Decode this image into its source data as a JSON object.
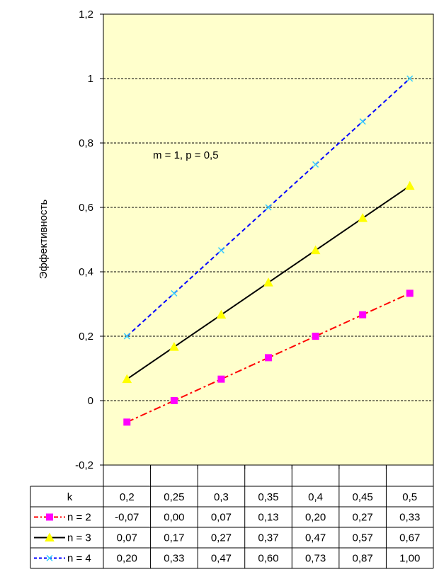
{
  "chart_data": {
    "type": "line",
    "ylabel": "Эффективность",
    "annotation": "m = 1, p = 0,5",
    "ylim": [
      -0.2,
      1.2
    ],
    "y_ticks": [
      "-0,2",
      "0",
      "0,2",
      "0,4",
      "0,6",
      "0,8",
      "1",
      "1,2"
    ],
    "x_header": "k",
    "categories": [
      "0,2",
      "0,25",
      "0,3",
      "0,35",
      "0,4",
      "0,45",
      "0,5"
    ],
    "grid": true,
    "plot_background": "#ffffcc",
    "series": [
      {
        "name": "n = 2",
        "values": [
          -0.0667,
          0.0,
          0.0667,
          0.1333,
          0.2,
          0.2667,
          0.3333
        ],
        "labels": [
          "-0,07",
          "0,00",
          "0,07",
          "0,13",
          "0,20",
          "0,27",
          "0,33"
        ],
        "color": "#ff0000",
        "marker_color": "#ff00ff",
        "marker": "square",
        "dash": "dash-dot"
      },
      {
        "name": "n = 3",
        "values": [
          0.0667,
          0.1667,
          0.2667,
          0.3667,
          0.4667,
          0.5667,
          0.6667
        ],
        "labels": [
          "0,07",
          "0,17",
          "0,27",
          "0,37",
          "0,47",
          "0,57",
          "0,67"
        ],
        "color": "#000000",
        "marker_color": "#ffff00",
        "marker": "triangle",
        "dash": "solid"
      },
      {
        "name": "n = 4",
        "values": [
          0.2,
          0.3333,
          0.4667,
          0.6,
          0.7333,
          0.8667,
          1.0
        ],
        "labels": [
          "0,20",
          "0,33",
          "0,47",
          "0,60",
          "0,73",
          "0,87",
          "1,00"
        ],
        "color": "#0000ff",
        "marker_color": "#33ccff",
        "marker": "x",
        "dash": "dash"
      }
    ]
  }
}
